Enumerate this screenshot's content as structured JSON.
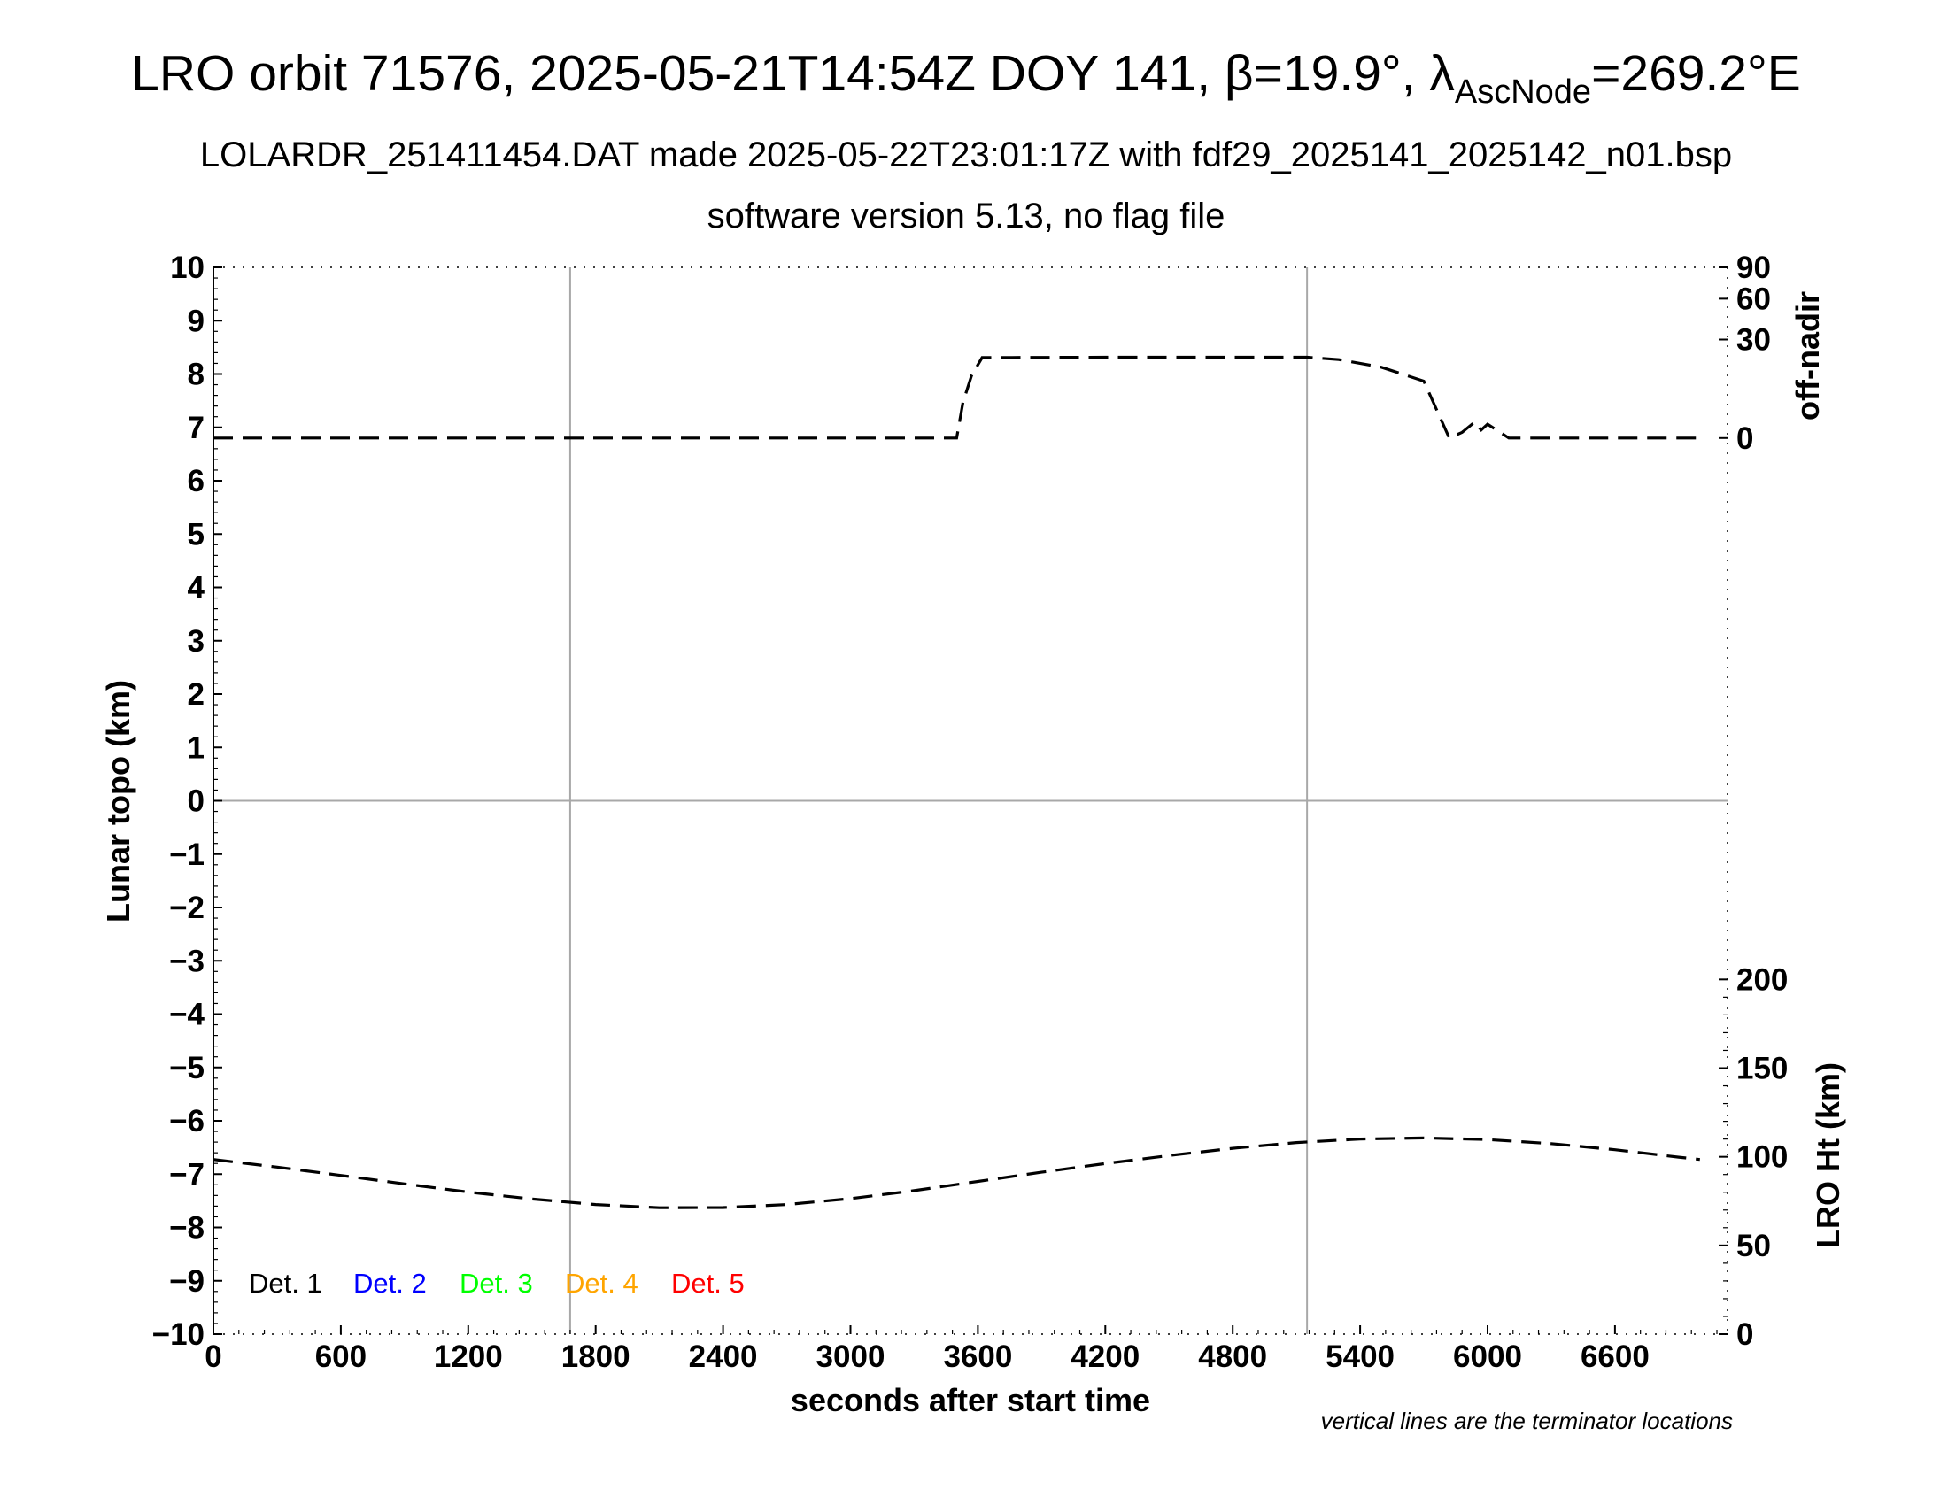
{
  "title": {
    "prefix": "LRO orbit 71576, 2025-05-21T14:54Z DOY 141, ",
    "beta_symbol": "β",
    "beta_value": "=19.9°, ",
    "lambda_symbol": "λ",
    "lambda_sub": "AscNode",
    "lambda_value": "=269.2°E"
  },
  "subtitle1": "LOLARDR_251411454.DAT made 2025-05-22T23:01:17Z with fdf29_2025141_2025142_n01.bsp",
  "subtitle2": "software version 5.13, no flag file",
  "footnote": "vertical lines are the terminator locations",
  "chart_data": {
    "type": "line",
    "xlabel": "seconds after start time",
    "ylabel_left": "Lunar topo (km)",
    "ylabel_right_top": "off-nadir",
    "ylabel_right_bottom": "LRO Ht (km)",
    "xlim": [
      0,
      7130
    ],
    "ylim_left": [
      -10,
      10
    ],
    "x_ticks": [
      "0",
      "600",
      "1200",
      "1800",
      "2400",
      "3000",
      "3600",
      "4200",
      "4800",
      "5400",
      "6000",
      "6600"
    ],
    "y_ticks_left": [
      "10",
      "9",
      "8",
      "7",
      "6",
      "5",
      "4",
      "3",
      "2",
      "1",
      "0",
      "−1",
      "−2",
      "−3",
      "−4",
      "−5",
      "−6",
      "−7",
      "−8",
      "−9",
      "−10"
    ],
    "offnadir_ticks": [
      "90",
      "60",
      "30",
      "0"
    ],
    "height_ticks": [
      "200",
      "150",
      "100",
      "50",
      "0"
    ],
    "grid": {
      "vertical_x": [
        1680,
        5150
      ],
      "horizontal_y": [
        0
      ]
    },
    "legend": [
      {
        "label": "Det. 1",
        "color": "#000000"
      },
      {
        "label": "Det. 2",
        "color": "#0000ff"
      },
      {
        "label": "Det. 3",
        "color": "#00ff00"
      },
      {
        "label": "Det. 4",
        "color": "#ffa500"
      },
      {
        "label": "Det. 5",
        "color": "#ff0000"
      }
    ],
    "legend_position": "bottom-left",
    "series": [
      {
        "axis": "off-nadir",
        "x": [
          0,
          1680,
          3000,
          3500,
          3530,
          3570,
          3620,
          4200,
          4800,
          5150,
          5300,
          5500,
          5700,
          5820,
          5880,
          5940,
          5970,
          6000,
          6100,
          6400,
          6800,
          7000
        ],
        "y": [
          0,
          0,
          0,
          0,
          4,
          12,
          20,
          20.2,
          20.2,
          20.2,
          19,
          15.5,
          10,
          0,
          0.1,
          0.8,
          0.2,
          0.6,
          0,
          0,
          0,
          0
        ]
      },
      {
        "axis": "LRO Ht",
        "x": [
          0,
          300,
          600,
          900,
          1200,
          1500,
          1800,
          2100,
          2400,
          2700,
          3000,
          3300,
          3600,
          3900,
          4200,
          4500,
          4800,
          5100,
          5400,
          5700,
          6000,
          6300,
          6600,
          6900,
          7000
        ],
        "y": [
          98.5,
          94.2,
          89.5,
          84.7,
          80.1,
          76.2,
          73.1,
          71.3,
          71.4,
          73.1,
          76.4,
          80.9,
          86.1,
          91.3,
          96.2,
          100.7,
          104.8,
          108,
          110,
          110.6,
          109.7,
          107.4,
          104,
          99.8,
          98.5
        ]
      }
    ]
  }
}
